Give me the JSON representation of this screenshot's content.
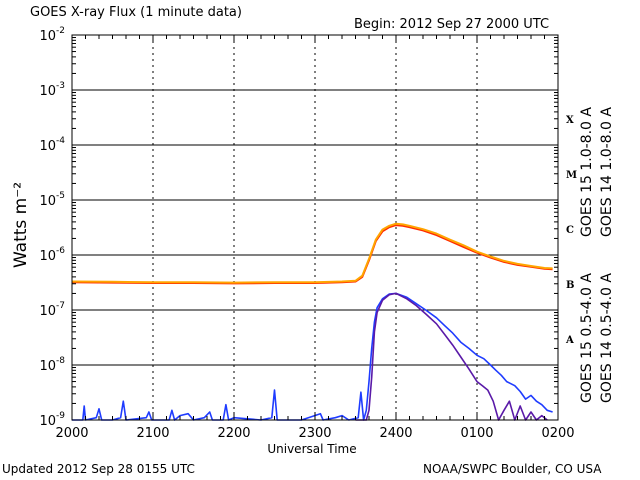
{
  "header": {
    "title": "GOES X-ray Flux (1 minute data)",
    "begin": "Begin: 2012 Sep 27 2000 UTC"
  },
  "footer": {
    "updated": "Updated 2012 Sep 28 0155 UTC",
    "credit": "NOAA/SWPC Boulder, CO USA"
  },
  "colors": {
    "goes15_long": "#ff2a00",
    "goes14_long": "#ffa500",
    "goes15_short": "#1f3cff",
    "goes14_short": "#5a1aa8",
    "grid": "#000000"
  },
  "chart_data": {
    "type": "line",
    "title": "GOES X-ray Flux (1 minute data)",
    "xlabel": "Universal Time",
    "ylabel": "Watts m⁻²",
    "yscale": "log",
    "ylim": [
      1e-09,
      0.01
    ],
    "xlim": [
      0,
      360
    ],
    "x_unit": "minutes since 2012 Sep 27 2000 UTC",
    "x_ticks": [
      {
        "x": 0,
        "label": "2000"
      },
      {
        "x": 60,
        "label": "2100"
      },
      {
        "x": 120,
        "label": "2200"
      },
      {
        "x": 180,
        "label": "2300"
      },
      {
        "x": 240,
        "label": "2400"
      },
      {
        "x": 300,
        "label": "0100"
      },
      {
        "x": 360,
        "label": "0200"
      }
    ],
    "y_ticks": [
      {
        "exp": -9,
        "label": "10",
        "sup": "-9"
      },
      {
        "exp": -8,
        "label": "10",
        "sup": "-8"
      },
      {
        "exp": -7,
        "label": "10",
        "sup": "-7"
      },
      {
        "exp": -6,
        "label": "10",
        "sup": "-6"
      },
      {
        "exp": -5,
        "label": "10",
        "sup": "-5"
      },
      {
        "exp": -4,
        "label": "10",
        "sup": "-4"
      },
      {
        "exp": -3,
        "label": "10",
        "sup": "-3"
      },
      {
        "exp": -2,
        "label": "10",
        "sup": "-2"
      }
    ],
    "flare_classes": [
      {
        "label": "A",
        "y": 3e-08
      },
      {
        "label": "B",
        "y": 3e-07
      },
      {
        "label": "C",
        "y": 3e-06
      },
      {
        "label": "M",
        "y": 3e-05
      },
      {
        "label": "X",
        "y": 0.0003
      }
    ],
    "grid": true,
    "legend_placement": "right (vertical text)",
    "series": [
      {
        "name": "GOES 15 1.0-8.0 A",
        "color": "#ff2a00",
        "points": [
          [
            0,
            3.2e-07
          ],
          [
            30,
            3.15e-07
          ],
          [
            60,
            3.1e-07
          ],
          [
            90,
            3.1e-07
          ],
          [
            120,
            3.05e-07
          ],
          [
            150,
            3.1e-07
          ],
          [
            180,
            3.1e-07
          ],
          [
            200,
            3.2e-07
          ],
          [
            210,
            3.3e-07
          ],
          [
            215,
            4e-07
          ],
          [
            220,
            8e-07
          ],
          [
            225,
            1.8e-06
          ],
          [
            230,
            2.7e-06
          ],
          [
            235,
            3.2e-06
          ],
          [
            240,
            3.5e-06
          ],
          [
            245,
            3.4e-06
          ],
          [
            250,
            3.2e-06
          ],
          [
            260,
            2.8e-06
          ],
          [
            270,
            2.3e-06
          ],
          [
            280,
            1.8e-06
          ],
          [
            290,
            1.4e-06
          ],
          [
            300,
            1.1e-06
          ],
          [
            310,
            9e-07
          ],
          [
            320,
            7.5e-07
          ],
          [
            330,
            6.6e-07
          ],
          [
            340,
            6.1e-07
          ],
          [
            350,
            5.6e-07
          ],
          [
            356,
            5.5e-07
          ]
        ]
      },
      {
        "name": "GOES 14 1.0-8.0 A",
        "color": "#ffa500",
        "points": [
          [
            0,
            3.3e-07
          ],
          [
            30,
            3.25e-07
          ],
          [
            60,
            3.2e-07
          ],
          [
            90,
            3.2e-07
          ],
          [
            120,
            3.15e-07
          ],
          [
            150,
            3.2e-07
          ],
          [
            180,
            3.2e-07
          ],
          [
            200,
            3.3e-07
          ],
          [
            210,
            3.4e-07
          ],
          [
            215,
            4.2e-07
          ],
          [
            220,
            8.5e-07
          ],
          [
            225,
            1.9e-06
          ],
          [
            230,
            2.9e-06
          ],
          [
            235,
            3.4e-06
          ],
          [
            240,
            3.7e-06
          ],
          [
            245,
            3.6e-06
          ],
          [
            250,
            3.4e-06
          ],
          [
            260,
            2.95e-06
          ],
          [
            270,
            2.45e-06
          ],
          [
            280,
            1.9e-06
          ],
          [
            290,
            1.5e-06
          ],
          [
            300,
            1.15e-06
          ],
          [
            310,
            9.4e-07
          ],
          [
            320,
            7.8e-07
          ],
          [
            330,
            6.9e-07
          ],
          [
            340,
            6.3e-07
          ],
          [
            350,
            5.8e-07
          ],
          [
            356,
            5.7e-07
          ]
        ]
      },
      {
        "name": "GOES 15 0.5-4.0 A",
        "color": "#1f3cff",
        "points": [
          [
            0,
            1e-09
          ],
          [
            8,
            1e-09
          ],
          [
            9,
            1.8e-09
          ],
          [
            10,
            1e-09
          ],
          [
            18,
            1.1e-09
          ],
          [
            20,
            1.6e-09
          ],
          [
            22,
            1e-09
          ],
          [
            30,
            1e-09
          ],
          [
            36,
            1.1e-09
          ],
          [
            38,
            2.2e-09
          ],
          [
            40,
            1e-09
          ],
          [
            55,
            1.1e-09
          ],
          [
            57,
            1.4e-09
          ],
          [
            59,
            1e-09
          ],
          [
            72,
            1e-09
          ],
          [
            74,
            1.5e-09
          ],
          [
            76,
            1e-09
          ],
          [
            80,
            1.2e-09
          ],
          [
            86,
            1.3e-09
          ],
          [
            90,
            1e-09
          ],
          [
            98,
            1.1e-09
          ],
          [
            102,
            1.4e-09
          ],
          [
            104,
            1e-09
          ],
          [
            112,
            1e-09
          ],
          [
            114,
            1.9e-09
          ],
          [
            116,
            1e-09
          ],
          [
            120,
            1.1e-09
          ],
          [
            140,
            1e-09
          ],
          [
            148,
            1.1e-09
          ],
          [
            150,
            3.5e-09
          ],
          [
            152,
            1e-09
          ],
          [
            170,
            1e-09
          ],
          [
            184,
            1.3e-09
          ],
          [
            186,
            1e-09
          ],
          [
            195,
            1.1e-09
          ],
          [
            200,
            1.2e-09
          ],
          [
            205,
            1e-09
          ],
          [
            212,
            1.1e-09
          ],
          [
            214,
            3.2e-09
          ],
          [
            216,
            1e-09
          ],
          [
            218,
            1.5e-09
          ],
          [
            220,
            5e-09
          ],
          [
            222,
            2e-08
          ],
          [
            224,
            6e-08
          ],
          [
            226,
            1.1e-07
          ],
          [
            230,
            1.6e-07
          ],
          [
            235,
            1.95e-07
          ],
          [
            240,
            2e-07
          ],
          [
            248,
            1.7e-07
          ],
          [
            255,
            1.3e-07
          ],
          [
            262,
            1e-07
          ],
          [
            270,
            7.2e-08
          ],
          [
            276,
            5.2e-08
          ],
          [
            282,
            3.8e-08
          ],
          [
            288,
            2.6e-08
          ],
          [
            294,
            2e-08
          ],
          [
            300,
            1.5e-08
          ],
          [
            305,
            1.3e-08
          ],
          [
            310,
            1e-08
          ],
          [
            314,
            8e-09
          ],
          [
            318,
            6.5e-09
          ],
          [
            322,
            5e-09
          ],
          [
            328,
            4.2e-09
          ],
          [
            332,
            3.3e-09
          ],
          [
            336,
            2.4e-09
          ],
          [
            340,
            2.8e-09
          ],
          [
            344,
            2.2e-09
          ],
          [
            348,
            1.9e-09
          ],
          [
            352,
            1.5e-09
          ],
          [
            356,
            1.4e-09
          ]
        ]
      },
      {
        "name": "GOES 14 0.5-4.0 A",
        "color": "#5a1aa8",
        "points": [
          [
            210,
            1e-09
          ],
          [
            218,
            1e-09
          ],
          [
            220,
            1.5e-09
          ],
          [
            222,
            6e-09
          ],
          [
            224,
            4e-08
          ],
          [
            226,
            9e-08
          ],
          [
            230,
            1.5e-07
          ],
          [
            235,
            1.9e-07
          ],
          [
            240,
            2e-07
          ],
          [
            248,
            1.6e-07
          ],
          [
            255,
            1.2e-07
          ],
          [
            262,
            8.5e-08
          ],
          [
            270,
            5.6e-08
          ],
          [
            276,
            3.6e-08
          ],
          [
            282,
            2.3e-08
          ],
          [
            288,
            1.4e-08
          ],
          [
            294,
            8.5e-09
          ],
          [
            300,
            5e-09
          ],
          [
            304,
            4.2e-09
          ],
          [
            308,
            3.5e-09
          ],
          [
            312,
            2.2e-09
          ],
          [
            316,
            1e-09
          ],
          [
            320,
            1.5e-09
          ],
          [
            324,
            2.2e-09
          ],
          [
            328,
            1e-09
          ],
          [
            332,
            1.8e-09
          ],
          [
            336,
            1e-09
          ],
          [
            340,
            1.4e-09
          ],
          [
            344,
            1e-09
          ],
          [
            348,
            1.2e-09
          ],
          [
            352,
            1e-09
          ]
        ]
      }
    ]
  }
}
